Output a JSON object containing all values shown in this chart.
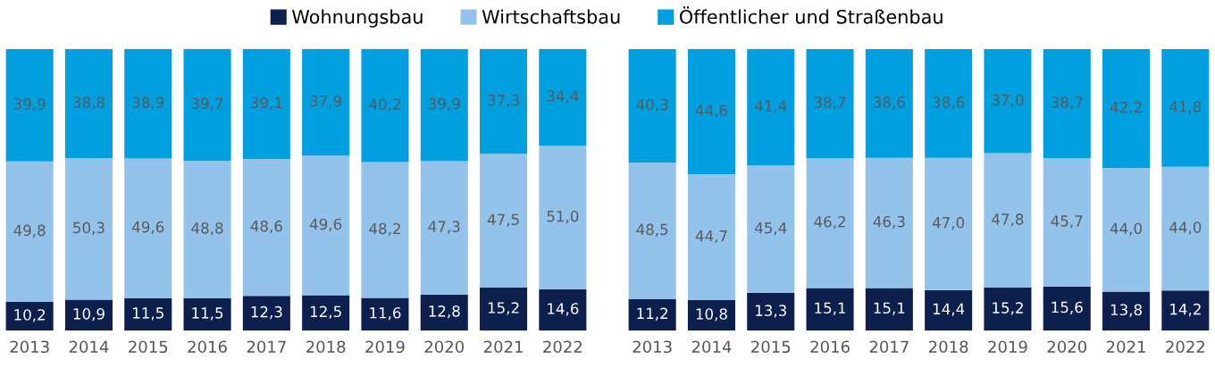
{
  "chart_data": [
    {
      "type": "bar",
      "stacked": true,
      "legend": "top",
      "categories": [
        "2013",
        "2014",
        "2015",
        "2016",
        "2017",
        "2018",
        "2019",
        "2020",
        "2021",
        "2022"
      ],
      "series": [
        {
          "name": "Wohnungsbau",
          "color": "#0c1f4d",
          "values": [
            10.2,
            10.9,
            11.5,
            11.5,
            12.3,
            12.5,
            11.6,
            12.8,
            15.2,
            14.6
          ],
          "value_labels": [
            "10,2",
            "10,9",
            "11,5",
            "11,5",
            "12,3",
            "12,5",
            "11,6",
            "12,8",
            "15,2",
            "14,6"
          ]
        },
        {
          "name": "Wirtschaftsbau",
          "color": "#93c2ea",
          "values": [
            49.8,
            50.3,
            49.6,
            48.8,
            48.6,
            49.6,
            48.2,
            47.3,
            47.5,
            51.0
          ],
          "value_labels": [
            "49,8",
            "50,3",
            "49,6",
            "48,8",
            "48,6",
            "49,6",
            "48,2",
            "47,3",
            "47,5",
            "51,0"
          ]
        },
        {
          "name": "Öffentlicher und Straßenbau",
          "color": "#009fe0",
          "values": [
            39.9,
            38.8,
            38.9,
            39.7,
            39.1,
            37.9,
            40.2,
            39.9,
            37.3,
            34.4
          ],
          "value_labels": [
            "39,9",
            "38,8",
            "38,9",
            "39,7",
            "39,1",
            "37,9",
            "40,2",
            "39,9",
            "37,3",
            "34,4"
          ]
        }
      ]
    },
    {
      "type": "bar",
      "stacked": true,
      "categories": [
        "2013",
        "2014",
        "2015",
        "2016",
        "2017",
        "2018",
        "2019",
        "2020",
        "2021",
        "2022"
      ],
      "series": [
        {
          "color": "#0c1f4d",
          "values": [
            11.2,
            10.8,
            13.3,
            15.1,
            15.1,
            14.4,
            15.2,
            15.6,
            13.8,
            14.2
          ],
          "value_labels": [
            "11,2",
            "10,8",
            "13,3",
            "15,1",
            "15,1",
            "14,4",
            "15,2",
            "15,6",
            "13,8",
            "14,2"
          ]
        },
        {
          "color": "#93c2ea",
          "values": [
            48.5,
            44.7,
            45.4,
            46.2,
            46.3,
            47.0,
            47.8,
            45.7,
            44.0,
            44.0
          ],
          "value_labels": [
            "48,5",
            "44,7",
            "45,4",
            "46,2",
            "46,3",
            "47,0",
            "47,8",
            "45,7",
            "44,0",
            "44,0"
          ]
        },
        {
          "color": "#009fe0",
          "values": [
            40.3,
            44.6,
            41.4,
            38.7,
            38.6,
            38.6,
            37.0,
            38.7,
            42.2,
            41.8
          ],
          "value_labels": [
            "40,3",
            "44,6",
            "41,4",
            "38,7",
            "38,6",
            "38,6",
            "37,0",
            "38,7",
            "42,2",
            "41,8"
          ]
        }
      ]
    }
  ]
}
